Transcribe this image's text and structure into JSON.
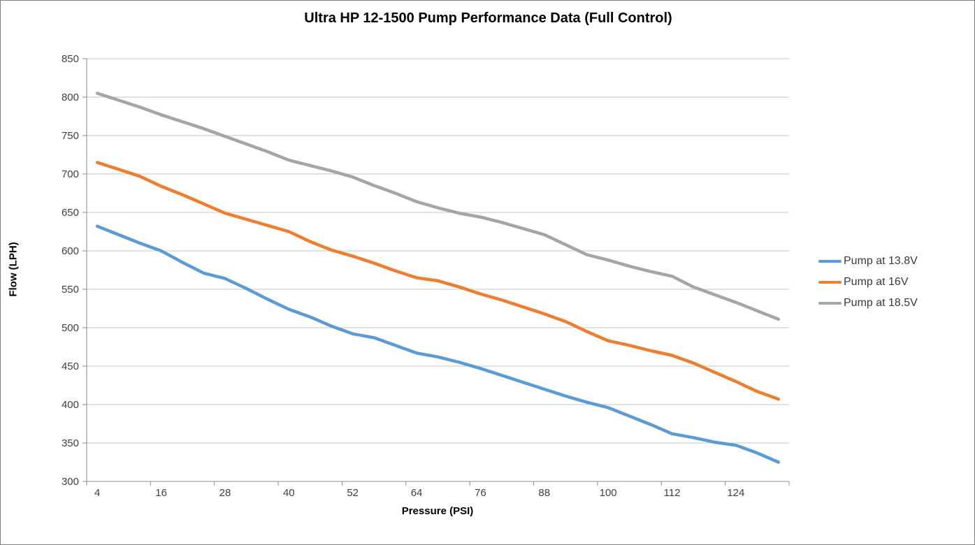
{
  "title": "Ultra HP 12-1500 Pump Performance Data (Full Control)",
  "chart_data": {
    "type": "line",
    "title": "Ultra HP 12-1500 Pump Performance Data (Full Control)",
    "xlabel": "Pressure (PSI)",
    "ylabel": "Flow (LPH)",
    "x": [
      4,
      8,
      12,
      16,
      20,
      24,
      28,
      32,
      36,
      40,
      44,
      48,
      52,
      56,
      60,
      64,
      68,
      72,
      76,
      80,
      84,
      88,
      92,
      96,
      100,
      104,
      108,
      112,
      116,
      120,
      124,
      128,
      132
    ],
    "x_tick_labels": [
      "4",
      "16",
      "28",
      "40",
      "52",
      "64",
      "76",
      "88",
      "100",
      "112",
      "124"
    ],
    "x_label_interval": 3,
    "y_ticks": [
      300,
      350,
      400,
      450,
      500,
      550,
      600,
      650,
      700,
      750,
      800,
      850
    ],
    "ylim": [
      300,
      850
    ],
    "grid": "horizontal-only",
    "legend_position": "right-outside",
    "series": [
      {
        "name": "Pump at 13.8V",
        "color": "#5B9BD5",
        "values": [
          632,
          621,
          610,
          600,
          585,
          571,
          564,
          551,
          537,
          524,
          514,
          502,
          492,
          487,
          477,
          467,
          462,
          455,
          447,
          438,
          429,
          420,
          411,
          403,
          396,
          385,
          374,
          362,
          357,
          351,
          347,
          337,
          325
        ]
      },
      {
        "name": "Pump at 16V",
        "color": "#ED7D31",
        "values": [
          715,
          706,
          697,
          684,
          673,
          661,
          649,
          641,
          633,
          625,
          612,
          601,
          593,
          584,
          574,
          565,
          561,
          553,
          544,
          536,
          527,
          518,
          508,
          495,
          483,
          477,
          470,
          464,
          454,
          442,
          430,
          417,
          407
        ]
      },
      {
        "name": "Pump at 18.5V",
        "color": "#A5A5A5",
        "values": [
          805,
          796,
          787,
          777,
          768,
          759,
          749,
          739,
          729,
          718,
          711,
          704,
          696,
          685,
          675,
          664,
          656,
          649,
          644,
          637,
          629,
          621,
          608,
          595,
          588,
          580,
          573,
          567,
          553,
          543,
          533,
          522,
          511
        ]
      }
    ],
    "style": {
      "gridline_color": "#C6C6C6",
      "axis_color": "#8C8C8C",
      "tick_label_color": "#404040",
      "line_width": 4.5
    }
  }
}
